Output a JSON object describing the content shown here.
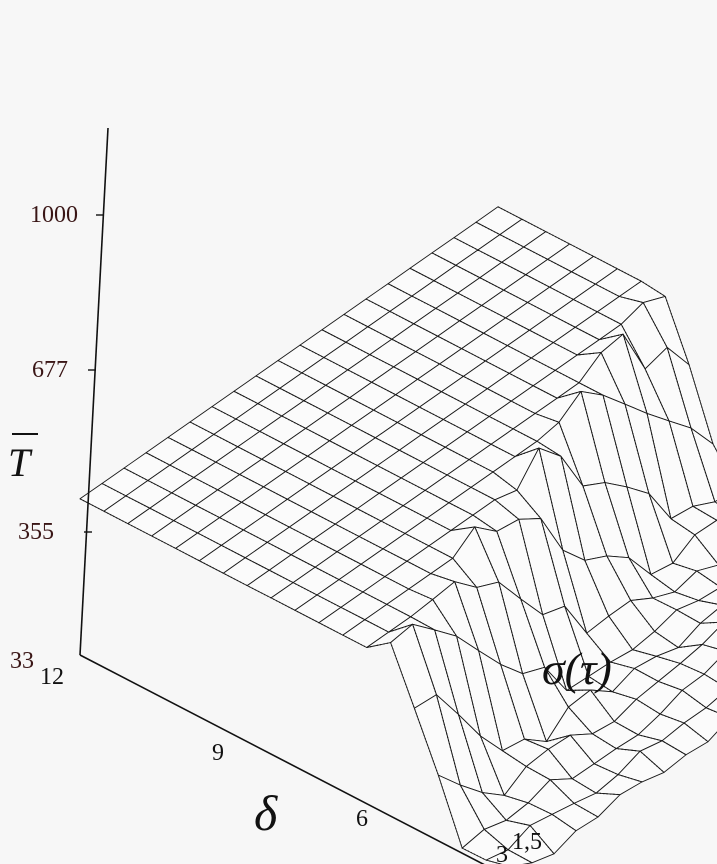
{
  "chart_data": {
    "type": "surface",
    "title": "",
    "z_axis": {
      "label": "T",
      "ticks": [
        "33",
        "355",
        "677",
        "1000"
      ],
      "tick_values": [
        33,
        355,
        677,
        1000
      ],
      "range": [
        33,
        1100
      ]
    },
    "delta_axis": {
      "label": "δ",
      "ticks": [
        "12",
        "9",
        "6",
        "3"
      ],
      "tick_values": [
        12,
        9,
        6,
        3
      ],
      "range": [
        3,
        12
      ]
    },
    "sigma_axis": {
      "label": "σ(τ)",
      "ticks": [
        "1,5"
      ],
      "tick_values": [
        1.5
      ]
    },
    "surface": {
      "delta_samples": [
        12,
        11.5,
        11,
        10.5,
        10,
        9.5,
        9,
        8.5,
        8,
        7.5,
        7,
        6.5,
        6,
        5.5,
        5,
        4.5,
        4,
        3.5,
        3
      ],
      "sigma_rows": 20,
      "plateau_T": 355,
      "base_T": 33,
      "peak_T": 1100,
      "peak_delta": 3
    },
    "colors": {
      "mesh": "#1a1a1a",
      "surface_fill": "#fbfbfb",
      "tick_text": "#3a1616",
      "background": "#f7f7f7"
    }
  }
}
